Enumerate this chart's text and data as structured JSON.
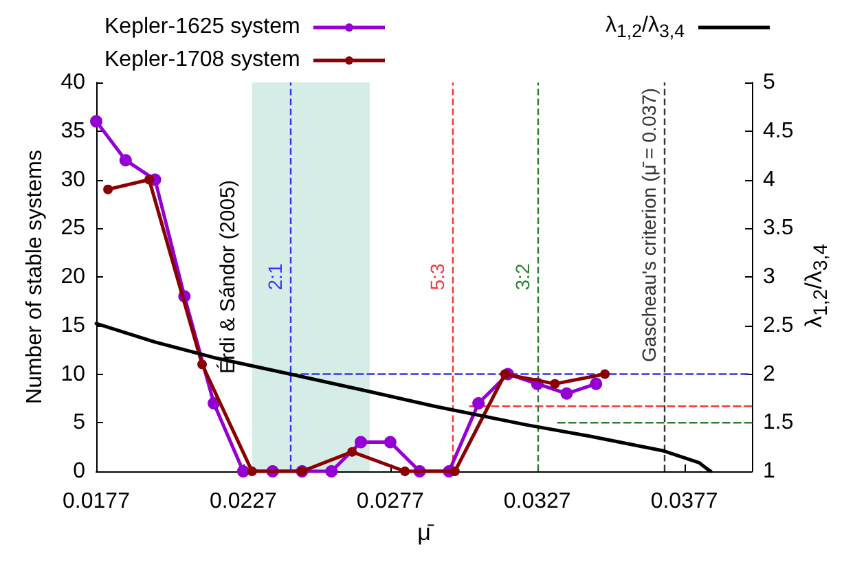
{
  "chart_data": {
    "type": "line",
    "xlabel": "μ̄",
    "ylabel": "Number of stable systems",
    "y2label": "λ$_{1,2}$/λ$_{3,4}$",
    "xlim": [
      0.0177,
      0.04
    ],
    "xticks": [
      0.0177,
      0.0227,
      0.0277,
      0.0327,
      0.0377
    ],
    "ylim": [
      0,
      40
    ],
    "yticks": [
      0,
      5,
      10,
      15,
      20,
      25,
      30,
      35,
      40
    ],
    "y2lim": [
      1,
      5
    ],
    "y2ticks": [
      1,
      1.5,
      2,
      2.5,
      3,
      3.5,
      4,
      4.5,
      5
    ],
    "grid": false,
    "legend": "top",
    "marker": "circle",
    "line_style": "solid",
    "series": [
      {
        "name": "Kepler-1625 system",
        "color": "#9400d3",
        "x": [
          0.0177,
          0.0187,
          0.0197,
          0.0207,
          0.0217,
          0.0227,
          0.0237,
          0.0247,
          0.0257,
          0.0267,
          0.0277,
          0.0287,
          0.0297,
          0.0307,
          0.0317,
          0.0327,
          0.0337,
          0.0347
        ],
        "values": [
          36,
          32,
          30,
          18,
          7,
          0,
          0,
          0,
          0,
          3,
          3,
          0,
          0,
          7,
          10,
          9,
          8,
          9
        ]
      },
      {
        "name": "Kepler-1708 system",
        "color": "#8b0000",
        "x": [
          0.0181,
          0.0195,
          0.0213,
          0.023,
          0.0247,
          0.0264,
          0.0282,
          0.0299,
          0.0316,
          0.0333,
          0.035
        ],
        "values": [
          29,
          30,
          11,
          0,
          0,
          2,
          0,
          0,
          10,
          9,
          10
        ]
      },
      {
        "name": "λ$_{1,2}$/λ$_{3,4}$",
        "color": "#000000",
        "axis": "y2",
        "marker": "none",
        "x": [
          0.0177,
          0.0197,
          0.0217,
          0.0243,
          0.027,
          0.0292,
          0.0323,
          0.0345,
          0.037,
          0.0382,
          0.0385,
          0.0386
        ],
        "values": [
          2.52,
          2.33,
          2.17,
          2.0,
          1.82,
          1.67,
          1.48,
          1.36,
          1.21,
          1.09,
          1.02,
          1.0
        ]
      },
      {
        "color": "#3333ff",
        "marker": "none",
        "line_style": "dashed",
        "x": [
          0.0243,
          0.04
        ],
        "values": [
          10,
          10
        ]
      },
      {
        "color": "#ff3333",
        "marker": "none",
        "line_style": "dashed",
        "x": [
          0.0304,
          0.04
        ],
        "values": [
          6.7,
          6.7
        ]
      },
      {
        "color": "#2e7d32",
        "marker": "none",
        "line_style": "dashed",
        "x": [
          0.0334,
          0.04
        ],
        "values": [
          5,
          5
        ]
      }
    ],
    "ref_lines": [
      {
        "axis": "x",
        "value": 0.0243,
        "label": "2:1",
        "color": "#3333ff",
        "line_style": "dashed"
      },
      {
        "axis": "x",
        "value": 0.0298,
        "label": "5:3",
        "color": "#ff3333",
        "line_style": "dashed"
      },
      {
        "axis": "x",
        "value": 0.0327,
        "label": "3:2",
        "color": "#2e7d32",
        "line_style": "dashed"
      },
      {
        "axis": "x",
        "value": 0.037,
        "label": "Gascheau's criterion (μ̄ = 0.037)",
        "color": "#333333",
        "line_style": "dashed"
      }
    ],
    "bands": [
      {
        "axis": "x",
        "from": 0.023,
        "to": 0.027,
        "label": "Érdi & Sándor (2005)",
        "color": "#d5ede6"
      }
    ]
  }
}
